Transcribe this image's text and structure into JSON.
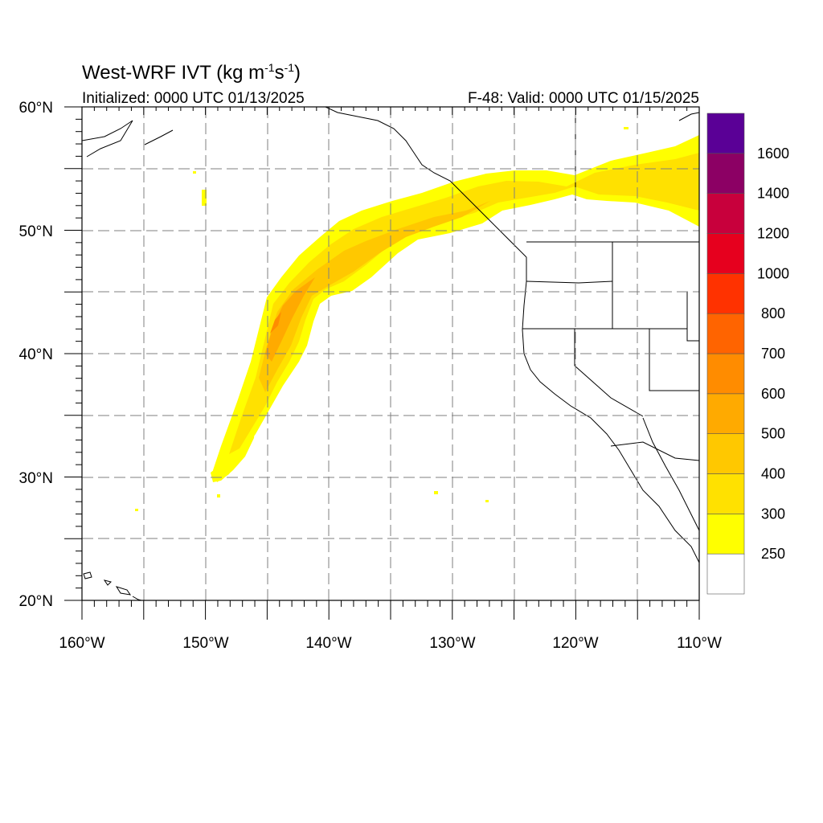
{
  "title": {
    "main": "West-WRF IVT (kg m",
    "sup1": "-1",
    "mid": "s",
    "sup2": "-1",
    "end": ")"
  },
  "subtitle_left": "Initialized: 0000 UTC 01/13/2025",
  "subtitle_right": "F-48: Valid: 0000 UTC 01/15/2025",
  "map": {
    "lon_range": [
      -160,
      -110
    ],
    "lat_range": [
      20,
      60
    ],
    "lon_labels": [
      {
        "lon": -160,
        "text": "160°W"
      },
      {
        "lon": -150,
        "text": "150°W"
      },
      {
        "lon": -140,
        "text": "140°W"
      },
      {
        "lon": -130,
        "text": "130°W"
      },
      {
        "lon": -120,
        "text": "120°W"
      },
      {
        "lon": -110,
        "text": "110°W"
      }
    ],
    "lat_labels": [
      {
        "lat": 60,
        "text": "60°N"
      },
      {
        "lat": 50,
        "text": "50°N"
      },
      {
        "lat": 40,
        "text": "40°N"
      },
      {
        "lat": 30,
        "text": "30°N"
      },
      {
        "lat": 20,
        "text": "20°N"
      }
    ],
    "grid": "dashed every 5°"
  },
  "colorbar": {
    "labels": [
      "250",
      "300",
      "400",
      "500",
      "600",
      "700",
      "800",
      "1000",
      "1200",
      "1400",
      "1600"
    ],
    "colors": [
      "#ffffff",
      "#ffff00",
      "#ffe100",
      "#ffc800",
      "#ffaa00",
      "#ff8c00",
      "#ff6400",
      "#ff3200",
      "#e6001e",
      "#c8003c",
      "#8c0064",
      "#5a0096"
    ]
  }
}
